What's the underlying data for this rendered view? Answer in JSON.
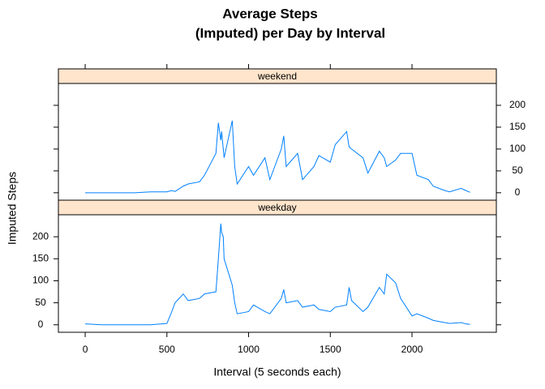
{
  "chart_data": {
    "type": "line",
    "title": [
      "Average Steps",
      "(Imputed) per Day by Interval"
    ],
    "x_label": "Interval (5 seconds each)",
    "y_label": "Imputed Steps",
    "xlim": [
      -164,
      2516
    ],
    "xticks": [
      0,
      500,
      1000,
      1500,
      2000
    ],
    "ylim": [
      -17,
      250
    ],
    "yticks": [
      0,
      50,
      100,
      150,
      200
    ],
    "strip_color": "#ffe5cc",
    "x": [
      0,
      100,
      200,
      300,
      400,
      500,
      530,
      550,
      600,
      630,
      700,
      730,
      800,
      815,
      830,
      835,
      845,
      850,
      900,
      915,
      930,
      1000,
      1030,
      1100,
      1130,
      1200,
      1215,
      1230,
      1300,
      1330,
      1400,
      1430,
      1500,
      1530,
      1600,
      1615,
      1630,
      1700,
      1730,
      1800,
      1830,
      1845,
      1900,
      1930,
      2000,
      2030,
      2100,
      2130,
      2200,
      2230,
      2300,
      2330,
      2355
    ],
    "series": [
      {
        "name": "weekend",
        "color": "#0080ff",
        "values": [
          0,
          0,
          0,
          0,
          2,
          2,
          5,
          3,
          15,
          20,
          25,
          40,
          90,
          160,
          120,
          140,
          100,
          80,
          165,
          60,
          20,
          60,
          40,
          80,
          30,
          100,
          130,
          60,
          90,
          30,
          60,
          85,
          70,
          110,
          140,
          105,
          100,
          80,
          45,
          95,
          80,
          60,
          75,
          90,
          90,
          40,
          30,
          15,
          5,
          2,
          10,
          5,
          1
        ]
      },
      {
        "name": "weekday",
        "color": "#0080ff",
        "values": [
          2,
          0,
          0,
          0,
          0,
          3,
          30,
          50,
          70,
          55,
          60,
          70,
          75,
          150,
          230,
          210,
          200,
          150,
          90,
          50,
          25,
          30,
          45,
          30,
          25,
          60,
          80,
          50,
          55,
          40,
          45,
          35,
          30,
          40,
          45,
          85,
          55,
          30,
          40,
          85,
          70,
          115,
          95,
          60,
          20,
          25,
          15,
          10,
          5,
          3,
          5,
          2,
          1
        ]
      }
    ]
  }
}
